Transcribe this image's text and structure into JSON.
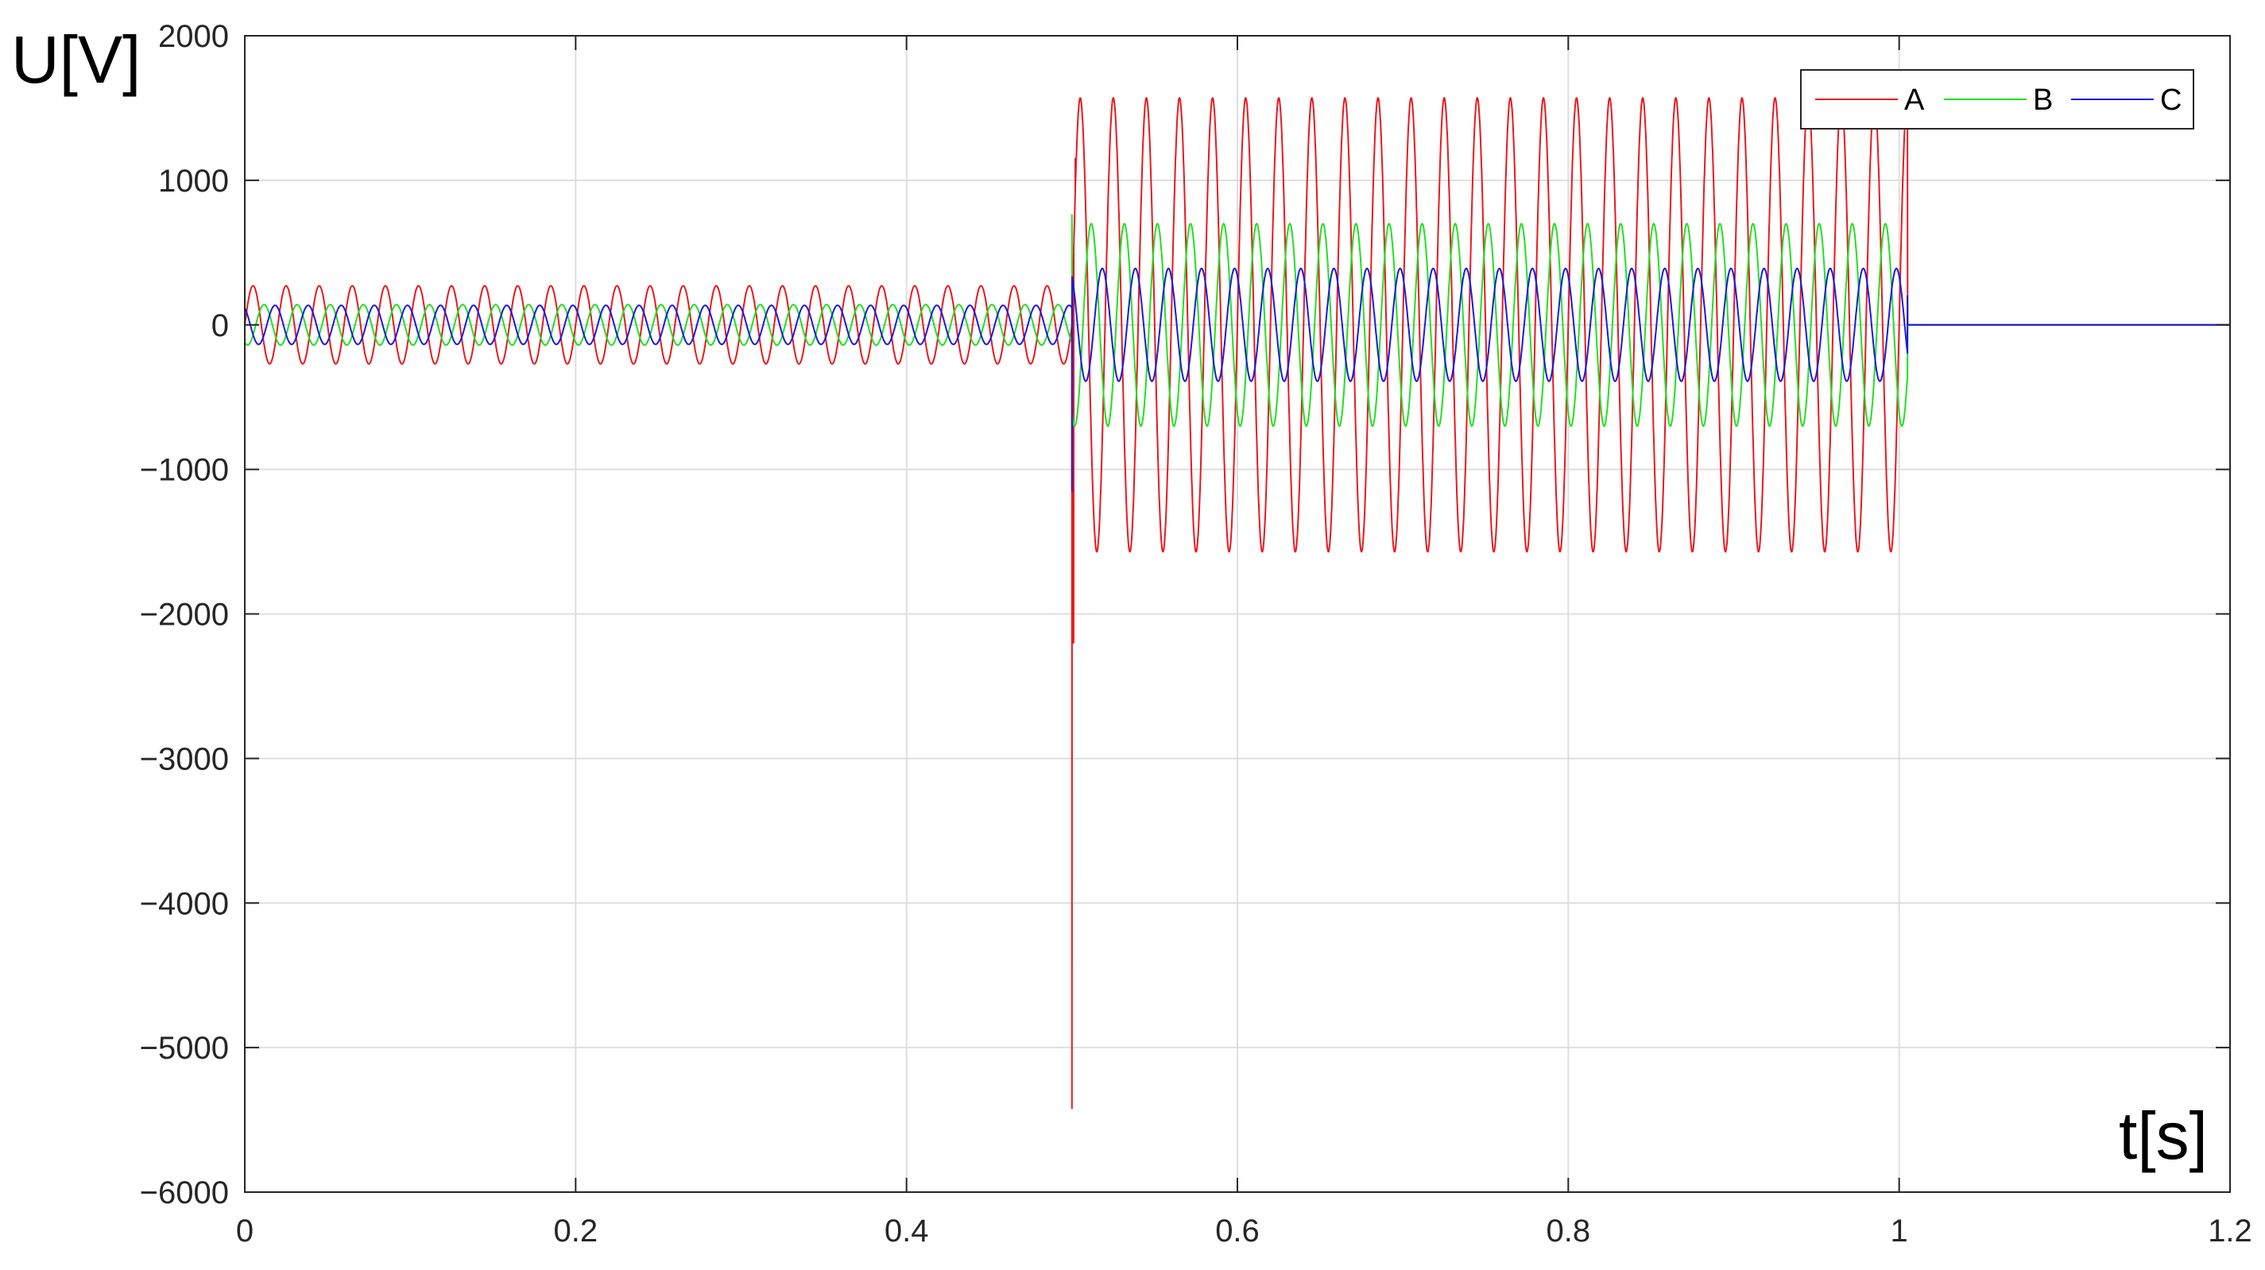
{
  "chart_data": {
    "type": "line",
    "title": "",
    "xlabel": "t[s]",
    "ylabel": "U[V]",
    "xlim": [
      0,
      1.2
    ],
    "ylim": [
      -6000,
      2000
    ],
    "xticks": [
      0,
      0.2,
      0.4,
      0.6,
      0.8,
      1,
      1.2
    ],
    "xtick_labels": [
      "0",
      "0.2",
      "0.4",
      "0.6",
      "0.8",
      "1",
      "1.2"
    ],
    "yticks": [
      -6000,
      -5000,
      -4000,
      -3000,
      -2000,
      -1000,
      0,
      1000,
      2000
    ],
    "ytick_labels": [
      "−6000",
      "−5000",
      "−4000",
      "−3000",
      "−2000",
      "−1000",
      "0",
      "1000",
      "2000"
    ],
    "grid": true,
    "legend_position": "top-right",
    "frequency_hz": 50,
    "series": [
      {
        "name": "A",
        "color": "#e8191f",
        "phase_deg": 0,
        "segments": [
          {
            "t_start": 0.0,
            "t_end": 0.5,
            "amplitude": 270
          },
          {
            "t_start": 0.5,
            "t_end": 1.005,
            "amplitude": 1570
          },
          {
            "t_start": 1.005,
            "t_end": 1.2,
            "amplitude": 0
          }
        ],
        "transients": [
          {
            "t": 0.5,
            "value": -5420
          },
          {
            "t": 0.501,
            "value": -2200
          },
          {
            "t": 0.502,
            "value": 1150
          }
        ]
      },
      {
        "name": "B",
        "color": "#22e022",
        "phase_deg": -120,
        "segments": [
          {
            "t_start": 0.0,
            "t_end": 0.5,
            "amplitude": 140
          },
          {
            "t_start": 0.5,
            "t_end": 1.005,
            "amplitude": 700
          },
          {
            "t_start": 1.005,
            "t_end": 1.2,
            "amplitude": 0
          }
        ],
        "transients": [
          {
            "t": 0.5,
            "value": 760
          }
        ]
      },
      {
        "name": "C",
        "color": "#1a1ae0",
        "phase_deg": 120,
        "segments": [
          {
            "t_start": 0.0,
            "t_end": 0.5,
            "amplitude": 135
          },
          {
            "t_start": 0.5,
            "t_end": 1.005,
            "amplitude": 390
          },
          {
            "t_start": 1.005,
            "t_end": 1.2,
            "amplitude": 0
          }
        ],
        "transients": [
          {
            "t": 0.5,
            "value": -1150
          },
          {
            "t": 1.005,
            "value": 200
          }
        ]
      }
    ]
  }
}
